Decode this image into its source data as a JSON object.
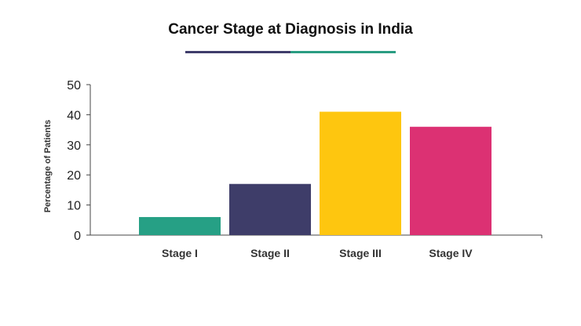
{
  "colors": {
    "underline_left": "#3f3d6b",
    "underline_right": "#2a9d82",
    "axis": "#444444"
  },
  "chart_data": {
    "type": "bar",
    "title": "Cancer Stage at Diagnosis in India",
    "xlabel": "",
    "ylabel": "Percentage of Patients",
    "categories": [
      "Stage I",
      "Stage II",
      "Stage III",
      "Stage IV"
    ],
    "values": [
      6,
      17,
      41,
      36
    ],
    "bar_colors": [
      "#26a085",
      "#3e3d69",
      "#fec60f",
      "#dc3173"
    ],
    "ylim": [
      0,
      50
    ],
    "yticks": [
      0,
      10,
      20,
      30,
      40,
      50
    ],
    "grid": false,
    "legend": "none"
  }
}
